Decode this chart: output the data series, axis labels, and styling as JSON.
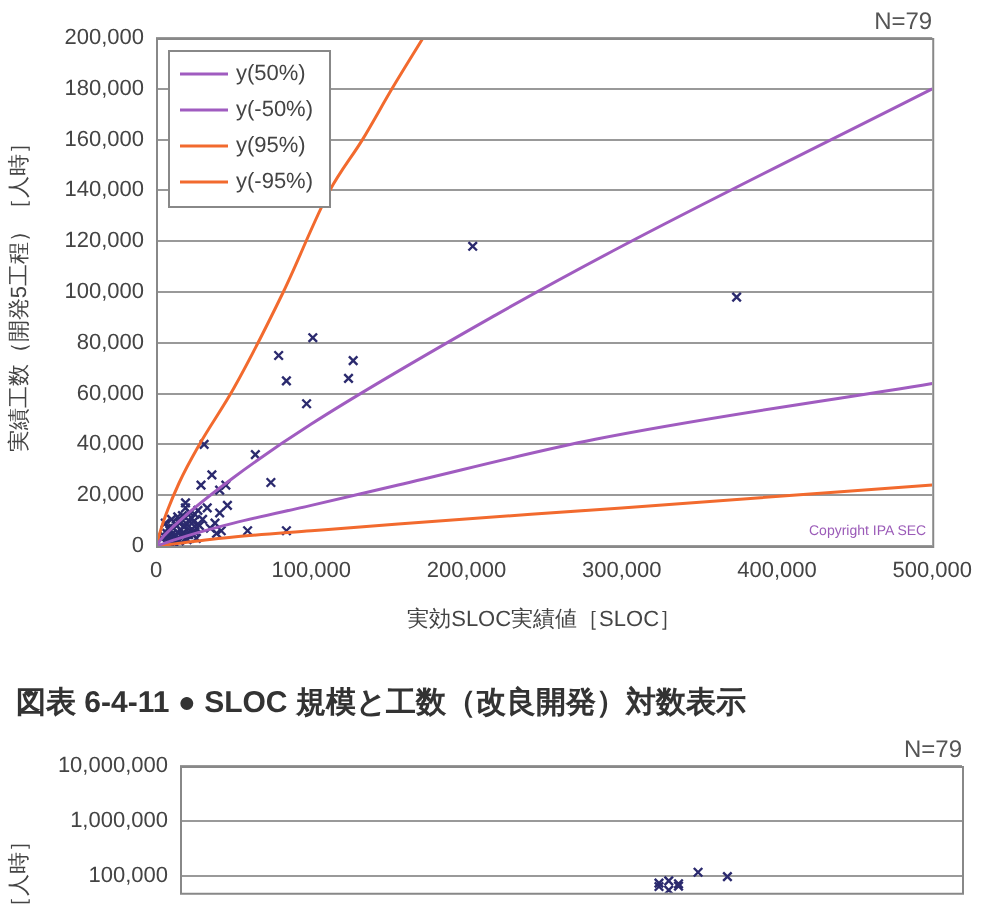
{
  "chart_data": [
    {
      "type": "scatter",
      "xlabel": "実効SLOC実績値［SLOC］",
      "ylabel": "実績工数（開発5工程）［人時］",
      "annotations": [
        "N=79",
        "Copyright IPA SEC"
      ],
      "xlim": [
        0,
        500000
      ],
      "xticks": [
        0,
        {
          "value": 100000,
          "label": "100,000"
        },
        {
          "value": 200000,
          "label": "200,000"
        },
        {
          "value": 300000,
          "label": "300,000"
        },
        {
          "value": 400000,
          "label": "400,000"
        },
        {
          "value": 500000,
          "label": "500,000"
        }
      ],
      "ylim": [
        0,
        200000
      ],
      "yticks": [
        0,
        {
          "value": 20000,
          "label": "20,000"
        },
        {
          "value": 40000,
          "label": "40,000"
        },
        {
          "value": 60000,
          "label": "60,000"
        },
        {
          "value": 80000,
          "label": "80,000"
        },
        {
          "value": 100000,
          "label": "100,000"
        },
        {
          "value": 120000,
          "label": "120,000"
        },
        {
          "value": 140000,
          "label": "140,000"
        },
        {
          "value": 160000,
          "label": "160,000"
        },
        {
          "value": 180000,
          "label": "180,000"
        },
        {
          "value": 200000,
          "label": "200,000"
        }
      ],
      "grid": "y",
      "legend": "top left",
      "series": [
        {
          "type": "scatter",
          "marker": "cross",
          "color": "#2b2a6e",
          "x": [
            204000,
            374000,
            101000,
            79000,
            84000,
            127000,
            124000,
            97000,
            31000,
            64000,
            74000,
            36000,
            29000,
            45000,
            41000,
            46000,
            33000,
            41000,
            19000,
            38000,
            42000,
            59000,
            84000,
            27000,
            5000,
            7000,
            8000,
            9000,
            10000,
            11000,
            13000,
            14000,
            15000,
            16000,
            17000,
            18000,
            19000,
            20000,
            21000,
            22000,
            23000,
            24000,
            25000,
            26000,
            28000,
            7000,
            9000,
            11000,
            13000,
            15000,
            17000,
            19000,
            21000,
            23000,
            25000,
            6000,
            10000,
            14000,
            18000,
            22000,
            26000,
            30000,
            4000,
            8000,
            12000,
            16000,
            20000,
            24000,
            35000,
            39000
          ],
          "values": [
            118000,
            98000,
            82000,
            75000,
            65000,
            73000,
            66000,
            56000,
            40000,
            36000,
            25000,
            28000,
            24000,
            24000,
            22000,
            16000,
            15000,
            13000,
            17000,
            9000,
            6000,
            6000,
            6000,
            14000,
            4000,
            5000,
            2000,
            6000,
            4500,
            7000,
            8000,
            5500,
            9000,
            6500,
            12000,
            7500,
            15000,
            8500,
            10000,
            6000,
            11000,
            9500,
            12500,
            7000,
            8000,
            3500,
            1000,
            2500,
            4000,
            2000,
            5000,
            3000,
            4500,
            6500,
            5500,
            9000,
            10500,
            11500,
            4000,
            13000,
            3000,
            10500,
            3000,
            7000,
            1000,
            9500,
            2500,
            4500,
            7000,
            5000
          ]
        },
        {
          "type": "line",
          "name": "y(50%)",
          "color": "#a05cc0",
          "x": [
            0,
            5000,
            20000,
            50000,
            100000,
            219000,
            300000,
            500000
          ],
          "values": [
            0,
            3900,
            12500,
            27000,
            48000,
            91000,
            118000,
            180000
          ]
        },
        {
          "type": "line",
          "name": "y(-50%)",
          "color": "#a05cc0",
          "x": [
            0,
            20000,
            50000,
            100000,
            156000,
            283000,
            500000
          ],
          "values": [
            0,
            4000,
            9000,
            16000,
            24000,
            42000,
            64000
          ]
        },
        {
          "type": "line",
          "name": "y(95%)",
          "color": "#f26a2e",
          "x": [
            0,
            5000,
            15000,
            28000,
            50000,
            82000,
            112000,
            133000,
            152000,
            172000
          ],
          "values": [
            0,
            10000,
            25000,
            40000,
            62000,
            100000,
            140000,
            160000,
            180000,
            200000
          ]
        },
        {
          "type": "line",
          "name": "y(-95%)",
          "color": "#f26a2e",
          "x": [
            0,
            50000,
            100000,
            156000,
            300000,
            500000
          ],
          "values": [
            0,
            3500,
            6000,
            8700,
            15000,
            24000
          ]
        }
      ]
    },
    {
      "type": "scatter",
      "title": "図表 6-4-11 ● SLOC 規模と工数（改良開発）対数表示",
      "ylabel": "［人時］",
      "annotations": [
        "N=79"
      ],
      "log": "y",
      "categories": [
        null,
        null,
        null,
        null,
        null,
        null,
        null,
        null,
        null,
        null,
        null,
        null,
        null,
        null,
        null,
        null,
        null,
        null,
        null,
        null,
        null,
        null,
        null,
        null,
        null,
        null,
        null,
        null,
        null,
        null,
        null,
        null,
        null,
        null,
        null,
        null,
        null,
        null,
        null,
        null,
        null,
        null,
        null,
        null,
        null,
        null,
        null,
        null,
        null,
        null,
        null,
        null,
        null,
        null,
        null,
        null,
        null,
        null,
        null,
        null,
        null,
        null,
        null,
        null,
        null,
        null,
        null,
        null,
        null,
        null,
        null,
        null,
        null,
        null,
        null,
        null,
        null,
        null,
        null,
        null,
        null
      ],
      "ylim": [
        50000,
        10000000
      ],
      "yticks": [
        {
          "value": 100000,
          "label": "100,000"
        },
        {
          "value": 1000000,
          "label": "1,000,000"
        },
        {
          "value": 10000000,
          "label": "10,000,000"
        }
      ],
      "tick_labels": "y",
      "grid": "y",
      "series": [
        {
          "type": "scatter",
          "marker": "cross",
          "color": "#2b2a6e",
          "values": [
            null,
            null,
            null,
            null,
            null,
            null,
            null,
            null,
            null,
            null,
            null,
            null,
            null,
            null,
            null,
            null,
            null,
            null,
            null,
            null,
            null,
            null,
            null,
            null,
            null,
            null,
            null,
            null,
            null,
            null,
            null,
            null,
            null,
            null,
            null,
            null,
            null,
            null,
            null,
            null,
            null,
            null,
            null,
            null,
            null,
            null,
            null,
            null,
            null,
            75000,
            82000,
            73000,
            null,
            118000,
            null,
            null,
            98000,
            null,
            null,
            null,
            null,
            null,
            null,
            null,
            null,
            null,
            null,
            null,
            null,
            null,
            null,
            null,
            null,
            null,
            null,
            null,
            null,
            null,
            null,
            null,
            null
          ]
        },
        {
          "type": "scatter",
          "marker": "cross",
          "color": "#2b2a6e",
          "values": [
            null,
            null,
            null,
            null,
            null,
            null,
            null,
            null,
            null,
            null,
            null,
            null,
            null,
            null,
            null,
            null,
            null,
            null,
            null,
            null,
            null,
            null,
            null,
            null,
            null,
            null,
            null,
            null,
            null,
            null,
            null,
            null,
            null,
            null,
            null,
            null,
            null,
            null,
            null,
            null,
            null,
            null,
            null,
            null,
            null,
            null,
            null,
            null,
            null,
            65000,
            56000,
            66000,
            null,
            null,
            null,
            null,
            null,
            null,
            null,
            null,
            null,
            null,
            null,
            null,
            null,
            null,
            null,
            null,
            null,
            null,
            null,
            null,
            null,
            null,
            null,
            null,
            null,
            null,
            null,
            null,
            null
          ]
        }
      ]
    }
  ]
}
